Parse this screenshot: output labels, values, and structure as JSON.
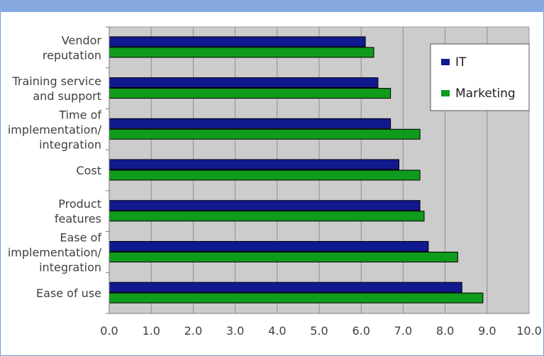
{
  "chart_data": {
    "type": "bar",
    "orientation": "horizontal",
    "categories": [
      [
        "Vendor",
        "reputation"
      ],
      [
        "Training service",
        "and support"
      ],
      [
        "Time of",
        "implementation/",
        "integration"
      ],
      [
        "Cost"
      ],
      [
        "Product",
        "features"
      ],
      [
        "Ease of",
        "implementation/",
        "integration"
      ],
      [
        "Ease of use"
      ]
    ],
    "series": [
      {
        "name": "IT",
        "color": "#10198e",
        "values": [
          6.1,
          6.4,
          6.7,
          6.9,
          7.4,
          7.6,
          8.4
        ]
      },
      {
        "name": "Marketing",
        "color": "#0f9b1b",
        "values": [
          6.3,
          6.7,
          7.4,
          7.4,
          7.5,
          8.3,
          8.9
        ]
      }
    ],
    "xlim": [
      0,
      10
    ],
    "xticks": [
      "0.0",
      "1.0",
      "2.0",
      "3.0",
      "4.0",
      "5.0",
      "6.0",
      "7.0",
      "8.0",
      "9.0",
      "10.0"
    ],
    "grid": "vertical",
    "plot_background": "#cccccc",
    "legend": "top-right"
  }
}
